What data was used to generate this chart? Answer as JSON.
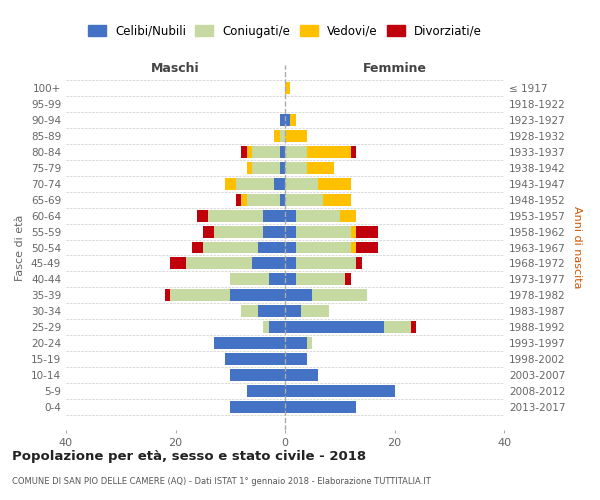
{
  "age_groups": [
    "0-4",
    "5-9",
    "10-14",
    "15-19",
    "20-24",
    "25-29",
    "30-34",
    "35-39",
    "40-44",
    "45-49",
    "50-54",
    "55-59",
    "60-64",
    "65-69",
    "70-74",
    "75-79",
    "80-84",
    "85-89",
    "90-94",
    "95-99",
    "100+"
  ],
  "birth_years": [
    "2013-2017",
    "2008-2012",
    "2003-2007",
    "1998-2002",
    "1993-1997",
    "1988-1992",
    "1983-1987",
    "1978-1982",
    "1973-1977",
    "1968-1972",
    "1963-1967",
    "1958-1962",
    "1953-1957",
    "1948-1952",
    "1943-1947",
    "1938-1942",
    "1933-1937",
    "1928-1932",
    "1923-1927",
    "1918-1922",
    "≤ 1917"
  ],
  "colors": {
    "celibi": "#4472c4",
    "coniugati": "#c5d9a0",
    "vedovi": "#ffc000",
    "divorziati": "#c0000b"
  },
  "maschi": {
    "celibi": [
      10,
      7,
      10,
      11,
      13,
      3,
      5,
      10,
      3,
      6,
      5,
      4,
      4,
      1,
      2,
      1,
      1,
      0,
      1,
      0,
      0
    ],
    "coniugati": [
      0,
      0,
      0,
      0,
      0,
      1,
      3,
      11,
      7,
      12,
      10,
      9,
      10,
      6,
      7,
      5,
      5,
      1,
      0,
      0,
      0
    ],
    "vedovi": [
      0,
      0,
      0,
      0,
      0,
      0,
      0,
      0,
      0,
      0,
      0,
      0,
      0,
      1,
      2,
      1,
      1,
      1,
      0,
      0,
      0
    ],
    "divorziati": [
      0,
      0,
      0,
      0,
      0,
      0,
      0,
      1,
      0,
      3,
      2,
      2,
      2,
      1,
      0,
      0,
      1,
      0,
      0,
      0,
      0
    ]
  },
  "femmine": {
    "celibi": [
      13,
      20,
      6,
      4,
      4,
      18,
      3,
      5,
      2,
      2,
      2,
      2,
      2,
      0,
      0,
      0,
      0,
      0,
      1,
      0,
      0
    ],
    "coniugati": [
      0,
      0,
      0,
      0,
      1,
      5,
      5,
      10,
      9,
      11,
      10,
      10,
      8,
      7,
      6,
      4,
      4,
      0,
      0,
      0,
      0
    ],
    "vedovi": [
      0,
      0,
      0,
      0,
      0,
      0,
      0,
      0,
      0,
      0,
      1,
      1,
      3,
      5,
      6,
      5,
      8,
      4,
      1,
      0,
      1
    ],
    "divorziati": [
      0,
      0,
      0,
      0,
      0,
      1,
      0,
      0,
      1,
      1,
      4,
      4,
      0,
      0,
      0,
      0,
      1,
      0,
      0,
      0,
      0
    ]
  },
  "xlim": 40,
  "title": "Popolazione per età, sesso e stato civile - 2018",
  "subtitle": "COMUNE DI SAN PIO DELLE CAMERE (AQ) - Dati ISTAT 1° gennaio 2018 - Elaborazione TUTTITALIA.IT",
  "ylabel_left": "Fasce di età",
  "ylabel_right": "Anni di nascita",
  "label_maschi": "Maschi",
  "label_femmine": "Femmine",
  "legend_labels": [
    "Celibi/Nubili",
    "Coniugati/e",
    "Vedovi/e",
    "Divorziati/e"
  ],
  "bg_color": "#ffffff",
  "grid_color": "#cccccc"
}
